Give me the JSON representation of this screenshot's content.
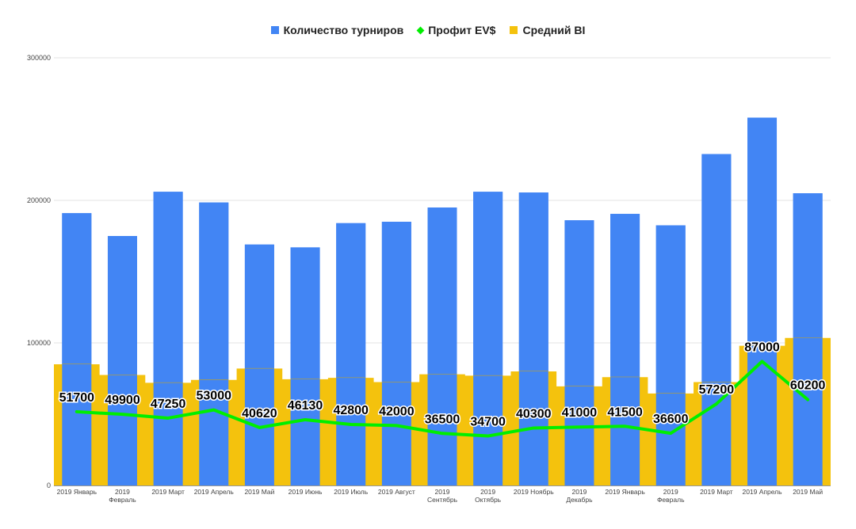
{
  "chart_data": {
    "type": "bar",
    "categories": [
      [
        "2019 Январь"
      ],
      [
        "2019",
        "Февраль"
      ],
      [
        "2019 Март"
      ],
      [
        "2019 Апрель"
      ],
      [
        "2019 Май"
      ],
      [
        "2019 Июнь"
      ],
      [
        "2019 Июль"
      ],
      [
        "2019 Август"
      ],
      [
        "2019",
        "Сентябрь"
      ],
      [
        "2019",
        "Октябрь"
      ],
      [
        "2019 Ноябрь"
      ],
      [
        "2019",
        "Декабрь"
      ],
      [
        "2019 Январь"
      ],
      [
        "2019",
        "Февраль"
      ],
      [
        "2019 Март"
      ],
      [
        "2019 Апрель"
      ],
      [
        "2019 Май"
      ]
    ],
    "series": [
      {
        "name": "Количество турниров",
        "type": "bar",
        "color": "#4285f4",
        "values": [
          191000,
          175000,
          206000,
          198500,
          169000,
          167000,
          184000,
          185000,
          195000,
          206000,
          205500,
          186000,
          190500,
          182500,
          232500,
          258000,
          205000
        ]
      },
      {
        "name": "Профит EV$",
        "type": "line",
        "color": "#00ee00",
        "values": [
          51700,
          49900,
          47250,
          53000,
          40620,
          46130,
          42800,
          42000,
          36500,
          34700,
          40300,
          41000,
          41500,
          36600,
          57200,
          87000,
          60200
        ],
        "labels": [
          "51700",
          "49900",
          "47250",
          "53000",
          "40620",
          "46130",
          "42800",
          "42000",
          "36500",
          "34700",
          "40300",
          "41000",
          "41500",
          "36600",
          "57200",
          "87000",
          "60200"
        ]
      },
      {
        "name": "Средний BI",
        "type": "area",
        "color": "#f4c20d",
        "values": [
          85000,
          77500,
          72000,
          74000,
          82000,
          74500,
          75500,
          72500,
          78000,
          77000,
          80000,
          69500,
          76000,
          64500,
          72500,
          98000,
          103500
        ]
      }
    ],
    "ylim": [
      0,
      300000
    ],
    "yticks": [
      "0",
      "100000",
      "200000",
      "300000"
    ],
    "grid": true,
    "legend_position": "top-center"
  }
}
